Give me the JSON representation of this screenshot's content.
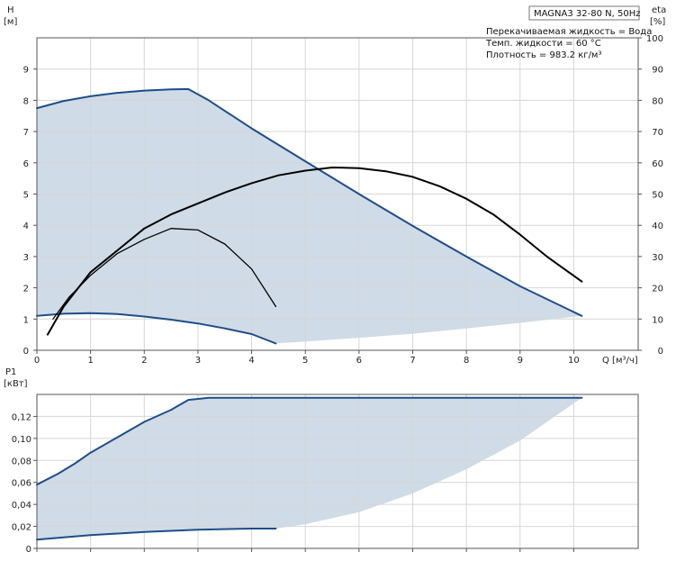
{
  "chart_data": [
    {
      "type": "line",
      "title": "MAGNA3 32-80 N, 50Hz",
      "annotations": [
        "Перекачиваемая жидкость = Вода",
        "Темп. жидкости = 60 °C",
        "Плотность = 983.2 кг/м³"
      ],
      "xlabel": "Q [м³/ч]",
      "ylabel": [
        "H",
        "[м]"
      ],
      "y2label": [
        "eta",
        "[%]"
      ],
      "xlim": [
        0,
        11.2
      ],
      "ylim": [
        0,
        10
      ],
      "y2lim": [
        0,
        100
      ],
      "xticks": [
        0,
        1,
        2,
        3,
        4,
        5,
        6,
        7,
        8,
        9,
        10
      ],
      "yticks": [
        0,
        1,
        2,
        3,
        4,
        5,
        6,
        7,
        8,
        9
      ],
      "y2ticks": [
        0,
        10,
        20,
        30,
        40,
        50,
        60,
        70,
        80,
        90,
        100
      ],
      "grid": true,
      "shaded_region": {
        "upper": [
          [
            0,
            7.75
          ],
          [
            0.5,
            7.98
          ],
          [
            1,
            8.13
          ],
          [
            1.5,
            8.24
          ],
          [
            2,
            8.31
          ],
          [
            2.5,
            8.35
          ],
          [
            2.82,
            8.36
          ],
          [
            3.2,
            8.0
          ],
          [
            4,
            7.1
          ],
          [
            5,
            6.05
          ],
          [
            6,
            5.0
          ],
          [
            7,
            3.98
          ],
          [
            8,
            3.0
          ],
          [
            9,
            2.05
          ],
          [
            10.15,
            1.1
          ]
        ],
        "lower": [
          [
            0,
            1.1
          ],
          [
            0.5,
            1.17
          ],
          [
            1,
            1.19
          ],
          [
            1.5,
            1.16
          ],
          [
            2,
            1.08
          ],
          [
            2.5,
            0.98
          ],
          [
            3,
            0.86
          ],
          [
            3.5,
            0.7
          ],
          [
            4,
            0.52
          ],
          [
            4.45,
            0.22
          ],
          [
            5,
            0.28
          ],
          [
            6,
            0.4
          ],
          [
            7,
            0.53
          ],
          [
            8,
            0.7
          ],
          [
            9,
            0.88
          ],
          [
            10.15,
            1.1
          ]
        ]
      },
      "series": [
        {
          "color": "#1d4e89",
          "axis": "left",
          "values": [
            [
              0,
              7.75
            ],
            [
              0.5,
              7.98
            ],
            [
              1,
              8.13
            ],
            [
              1.5,
              8.24
            ],
            [
              2,
              8.31
            ],
            [
              2.5,
              8.35
            ],
            [
              2.82,
              8.36
            ],
            [
              3.2,
              8.0
            ],
            [
              4,
              7.1
            ],
            [
              5,
              6.05
            ],
            [
              6,
              5.0
            ],
            [
              7,
              3.98
            ],
            [
              8,
              3.0
            ],
            [
              9,
              2.05
            ],
            [
              10.15,
              1.1
            ]
          ]
        },
        {
          "color": "#1d4e89",
          "axis": "left",
          "values": [
            [
              0,
              1.1
            ],
            [
              0.5,
              1.17
            ],
            [
              1,
              1.19
            ],
            [
              1.5,
              1.16
            ],
            [
              2,
              1.08
            ],
            [
              2.5,
              0.98
            ],
            [
              3,
              0.86
            ],
            [
              3.5,
              0.7
            ],
            [
              4,
              0.52
            ],
            [
              4.45,
              0.22
            ]
          ]
        },
        {
          "color": "#000000",
          "axis": "right",
          "values": [
            [
              0.2,
              5
            ],
            [
              0.5,
              14
            ],
            [
              1,
              25
            ],
            [
              1.5,
              32
            ],
            [
              2,
              39
            ],
            [
              2.5,
              43.5
            ],
            [
              3,
              47
            ],
            [
              3.5,
              50.5
            ],
            [
              4,
              53.5
            ],
            [
              4.5,
              56
            ],
            [
              5,
              57.5
            ],
            [
              5.5,
              58.5
            ],
            [
              6,
              58.3
            ],
            [
              6.5,
              57.3
            ],
            [
              7,
              55.5
            ],
            [
              7.5,
              52.5
            ],
            [
              8,
              48.5
            ],
            [
              8.5,
              43.5
            ],
            [
              9,
              37
            ],
            [
              9.5,
              30
            ],
            [
              10.15,
              22
            ]
          ]
        },
        {
          "color": "#000000",
          "axis": "right",
          "values": [
            [
              0.3,
              10
            ],
            [
              0.6,
              17
            ],
            [
              1,
              24
            ],
            [
              1.5,
              31
            ],
            [
              2,
              35.5
            ],
            [
              2.5,
              39
            ],
            [
              3,
              38.5
            ],
            [
              3.5,
              34
            ],
            [
              4,
              26
            ],
            [
              4.45,
              14
            ]
          ]
        }
      ]
    },
    {
      "type": "line",
      "xlabel": "",
      "ylabel": [
        "P1",
        "[кВт]"
      ],
      "xlim": [
        0,
        11.2
      ],
      "ylim": [
        0,
        0.14
      ],
      "yticks": [
        0,
        0.02,
        0.04,
        0.06,
        0.08,
        0.1,
        0.12
      ],
      "ytick_labels": [
        "0",
        "0,02",
        "0,04",
        "0,06",
        "0,08",
        "0,10",
        "0,12"
      ],
      "grid": true,
      "shaded_region": {
        "upper": [
          [
            0,
            0.058
          ],
          [
            0.4,
            0.068
          ],
          [
            0.7,
            0.077
          ],
          [
            1,
            0.087
          ],
          [
            1.5,
            0.101
          ],
          [
            2,
            0.115
          ],
          [
            2.5,
            0.126
          ],
          [
            2.82,
            0.135
          ],
          [
            3.2,
            0.137
          ],
          [
            4,
            0.137
          ],
          [
            6,
            0.137
          ],
          [
            8,
            0.137
          ],
          [
            10.15,
            0.137
          ]
        ],
        "lower": [
          [
            0,
            0.008
          ],
          [
            1,
            0.012
          ],
          [
            2,
            0.015
          ],
          [
            3,
            0.017
          ],
          [
            4,
            0.018
          ],
          [
            4.45,
            0.018
          ],
          [
            5,
            0.022
          ],
          [
            6,
            0.033
          ],
          [
            7,
            0.05
          ],
          [
            8,
            0.072
          ],
          [
            9,
            0.098
          ],
          [
            10.15,
            0.137
          ]
        ]
      },
      "series": [
        {
          "color": "#1d4e89",
          "values": [
            [
              0,
              0.058
            ],
            [
              0.4,
              0.068
            ],
            [
              0.7,
              0.077
            ],
            [
              1,
              0.087
            ],
            [
              1.5,
              0.101
            ],
            [
              2,
              0.115
            ],
            [
              2.5,
              0.126
            ],
            [
              2.82,
              0.135
            ],
            [
              3.2,
              0.137
            ],
            [
              4,
              0.137
            ],
            [
              6,
              0.137
            ],
            [
              8,
              0.137
            ],
            [
              10.15,
              0.137
            ]
          ]
        },
        {
          "color": "#1d4e89",
          "values": [
            [
              0,
              0.008
            ],
            [
              1,
              0.012
            ],
            [
              2,
              0.015
            ],
            [
              3,
              0.017
            ],
            [
              4,
              0.018
            ],
            [
              4.45,
              0.018
            ]
          ]
        }
      ]
    }
  ]
}
